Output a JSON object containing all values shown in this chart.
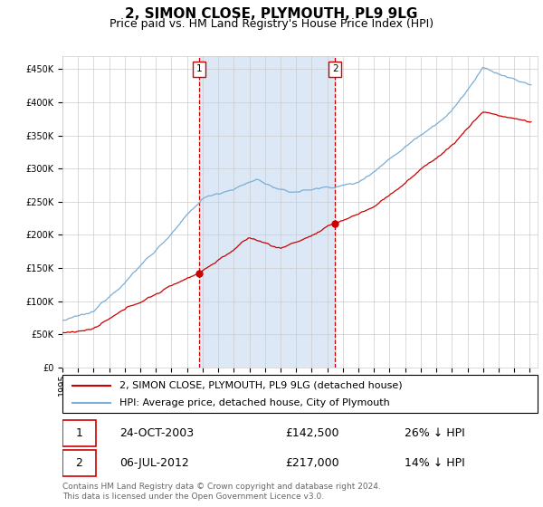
{
  "title": "2, SIMON CLOSE, PLYMOUTH, PL9 9LG",
  "subtitle": "Price paid vs. HM Land Registry's House Price Index (HPI)",
  "ylim": [
    0,
    470000
  ],
  "yticks": [
    0,
    50000,
    100000,
    150000,
    200000,
    250000,
    300000,
    350000,
    400000,
    450000
  ],
  "sale1_date": "24-OCT-2003",
  "sale1_price": 142500,
  "sale1_year": 2003.79,
  "sale1_pct": "26% ↓ HPI",
  "sale2_date": "06-JUL-2012",
  "sale2_price": 217000,
  "sale2_year": 2012.5,
  "sale2_pct": "14% ↓ HPI",
  "legend_red": "2, SIMON CLOSE, PLYMOUTH, PL9 9LG (detached house)",
  "legend_blue": "HPI: Average price, detached house, City of Plymouth",
  "footer": "Contains HM Land Registry data © Crown copyright and database right 2024.\nThis data is licensed under the Open Government Licence v3.0.",
  "red_color": "#cc0000",
  "blue_color": "#7aaed6",
  "shade_color": "#dce8f5",
  "grid_color": "#cccccc",
  "title_fontsize": 11,
  "subtitle_fontsize": 9,
  "tick_fontsize": 7,
  "legend_fontsize": 8,
  "table_fontsize": 9,
  "footer_fontsize": 6.5
}
